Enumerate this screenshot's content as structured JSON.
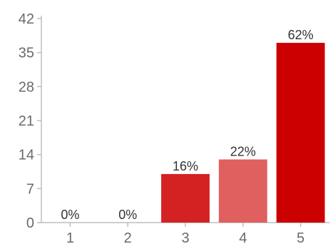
{
  "chart_data": {
    "type": "bar",
    "title": "",
    "xlabel": "",
    "ylabel": "",
    "categories": [
      "1",
      "2",
      "3",
      "4",
      "5"
    ],
    "values": [
      0,
      0,
      10,
      13,
      37
    ],
    "data_labels": [
      "0%",
      "0%",
      "16%",
      "22%",
      "62%"
    ],
    "bar_colors": [
      "#cc1111",
      "#cc1111",
      "#d42222",
      "#e06060",
      "#cc0000"
    ],
    "ylim": [
      0,
      42
    ],
    "y_ticks": [
      "0",
      "7",
      "14",
      "21",
      "28",
      "35",
      "42"
    ],
    "grid": false,
    "legend": "none"
  }
}
